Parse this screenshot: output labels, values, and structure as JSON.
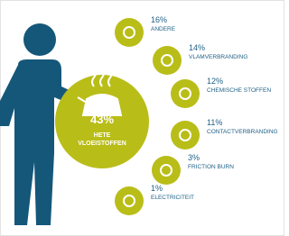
{
  "center": {
    "percent": "43%",
    "label_line1": "HETE",
    "label_line2": "VLOEISTOFFEN"
  },
  "items": [
    {
      "percent": "16%",
      "label": "ANDERE"
    },
    {
      "percent": "14%",
      "label": "VLAMVERBRANDING"
    },
    {
      "percent": "12%",
      "label": "CHEMISCHE STOFFEN"
    },
    {
      "percent": "11%",
      "label": "CONTACTVERBRANDING"
    },
    {
      "percent": "3%",
      "label": "FRICTION BURN"
    },
    {
      "percent": "1%",
      "label": "ELECTRICITEIT"
    }
  ]
}
